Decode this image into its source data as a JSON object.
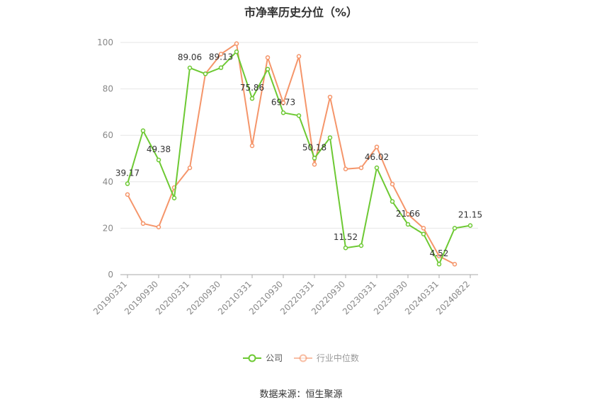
{
  "title": "市净率历史分位（%）",
  "source": "数据来源：恒生聚源",
  "colors": {
    "company": "#6dc933",
    "industry": "#f5956a"
  },
  "chart_data": {
    "type": "line",
    "title": "市净率历史分位（%）",
    "xlabel": "",
    "ylabel": "",
    "ylim": [
      0,
      100
    ],
    "yticks": [
      0,
      20,
      40,
      60,
      80,
      100
    ],
    "grid": true,
    "legend_position": "bottom",
    "x": [
      "20190331",
      "20190630",
      "20190930",
      "20191231",
      "20200331",
      "20200630",
      "20200930",
      "20201231",
      "20210331",
      "20210630",
      "20210930",
      "20211231",
      "20220331",
      "20220630",
      "20220930",
      "20221231",
      "20230331",
      "20230630",
      "20230930",
      "20231231",
      "20240331",
      "20240630",
      "20240822"
    ],
    "x_tick_labels": [
      "20190331",
      "20190930",
      "20200331",
      "20200930",
      "20210331",
      "20210930",
      "20220331",
      "20220930",
      "20230331",
      "20230930",
      "20240331",
      "20240822"
    ],
    "series": [
      {
        "name": "公司",
        "values": [
          39.17,
          62,
          49.38,
          33,
          89.06,
          86.5,
          89.13,
          96,
          75.86,
          88.5,
          69.73,
          68.5,
          50.18,
          59,
          11.52,
          12.5,
          46.02,
          31.5,
          21.66,
          17.5,
          4.52,
          20,
          21.15
        ]
      },
      {
        "name": "行业中位数",
        "values": [
          34.5,
          22,
          20.5,
          37.5,
          46,
          86.5,
          95,
          99.5,
          55.5,
          93.5,
          74,
          94,
          47.5,
          76.5,
          45.5,
          46,
          55,
          39,
          26,
          20,
          8,
          4.5,
          null
        ]
      }
    ],
    "data_labels": [
      {
        "series": 0,
        "index": 0,
        "text": "39.17"
      },
      {
        "series": 0,
        "index": 2,
        "text": "49.38"
      },
      {
        "series": 0,
        "index": 4,
        "text": "89.06"
      },
      {
        "series": 0,
        "index": 6,
        "text": "89.13"
      },
      {
        "series": 0,
        "index": 8,
        "text": "75.86"
      },
      {
        "series": 0,
        "index": 10,
        "text": "69.73"
      },
      {
        "series": 0,
        "index": 12,
        "text": "50.18"
      },
      {
        "series": 0,
        "index": 14,
        "text": "11.52"
      },
      {
        "series": 0,
        "index": 16,
        "text": "46.02"
      },
      {
        "series": 0,
        "index": 18,
        "text": "21.66"
      },
      {
        "series": 0,
        "index": 20,
        "text": "4.52"
      },
      {
        "series": 0,
        "index": 22,
        "text": "21.15"
      }
    ]
  }
}
